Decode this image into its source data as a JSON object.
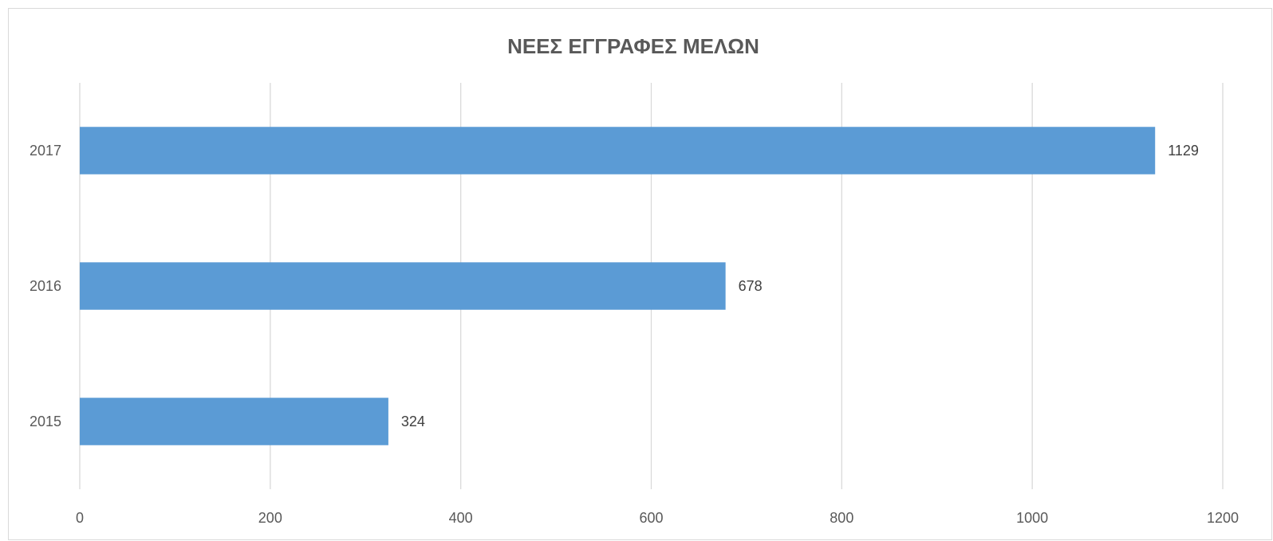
{
  "chart_data": {
    "type": "bar",
    "orientation": "horizontal",
    "title": "ΝΕΕΣ ΕΓΓΡΑΦΕΣ ΜΕΛΩΝ",
    "xlabel": "",
    "ylabel": "",
    "categories": [
      "2015",
      "2016",
      "2017"
    ],
    "values": [
      324,
      678,
      1129
    ],
    "data_labels": [
      "324",
      "678",
      "1129"
    ],
    "xlim": [
      0,
      1200
    ],
    "x_ticks": [
      0,
      200,
      400,
      600,
      800,
      1000,
      1200
    ],
    "x_tick_labels": [
      "0",
      "200",
      "400",
      "600",
      "800",
      "1000",
      "1200"
    ],
    "grid": "vertical",
    "legend": "none",
    "bar_color": "#5b9bd5"
  }
}
